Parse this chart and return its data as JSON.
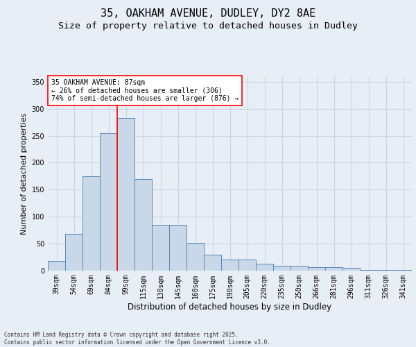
{
  "title_line1": "35, OAKHAM AVENUE, DUDLEY, DY2 8AE",
  "title_line2": "Size of property relative to detached houses in Dudley",
  "xlabel": "Distribution of detached houses by size in Dudley",
  "ylabel": "Number of detached properties",
  "categories": [
    "39sqm",
    "54sqm",
    "69sqm",
    "84sqm",
    "99sqm",
    "115sqm",
    "130sqm",
    "145sqm",
    "160sqm",
    "175sqm",
    "190sqm",
    "205sqm",
    "220sqm",
    "235sqm",
    "250sqm",
    "266sqm",
    "281sqm",
    "296sqm",
    "311sqm",
    "326sqm",
    "341sqm"
  ],
  "values": [
    18,
    68,
    175,
    255,
    283,
    170,
    85,
    85,
    52,
    30,
    20,
    20,
    13,
    9,
    9,
    7,
    6,
    5,
    1,
    1,
    1
  ],
  "bar_color": "#c8d8e8",
  "bar_edge_color": "#5588bb",
  "grid_color": "#c8d4e4",
  "background_color": "#e8eef6",
  "vline_color": "red",
  "vline_xindex": 3.5,
  "annotation_text": "35 OAKHAM AVENUE: 87sqm\n← 26% of detached houses are smaller (306)\n74% of semi-detached houses are larger (876) →",
  "annotation_box_color": "white",
  "annotation_box_edge": "red",
  "footnote": "Contains HM Land Registry data © Crown copyright and database right 2025.\nContains public sector information licensed under the Open Government Licence v3.0.",
  "ylim": [
    0,
    360
  ],
  "yticks": [
    0,
    50,
    100,
    150,
    200,
    250,
    300,
    350
  ],
  "title_fontsize": 11,
  "subtitle_fontsize": 9.5,
  "tick_fontsize": 7,
  "ylabel_fontsize": 8,
  "xlabel_fontsize": 8.5,
  "annot_fontsize": 7,
  "footnote_fontsize": 5.5
}
